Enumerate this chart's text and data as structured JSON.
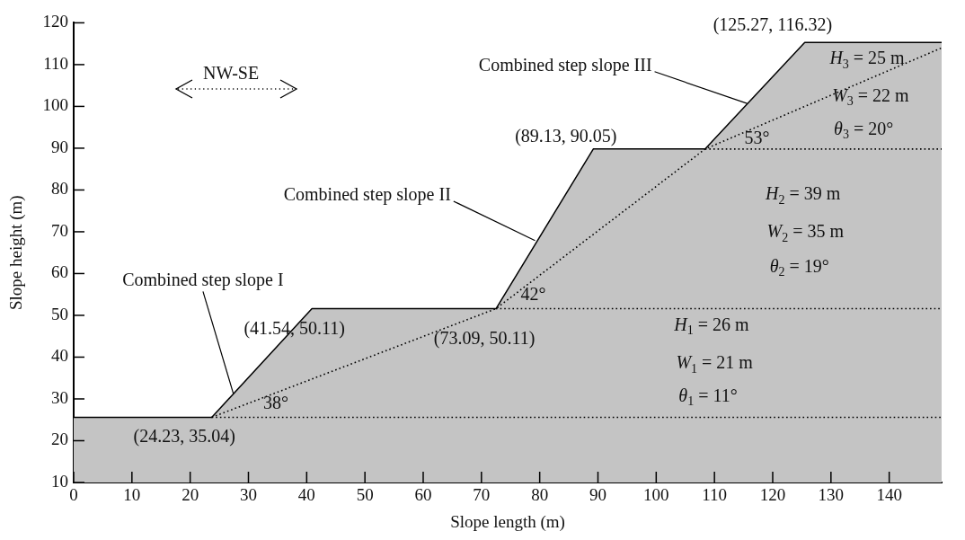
{
  "chart_data": {
    "type": "area",
    "xlabel": "Slope length (m)",
    "ylabel": "Slope height (m)",
    "xlim": [
      0,
      149
    ],
    "ylim": [
      10,
      120
    ],
    "xticks": [
      0,
      10,
      20,
      30,
      40,
      50,
      60,
      70,
      80,
      90,
      100,
      110,
      120,
      130,
      140
    ],
    "yticks": [
      10,
      20,
      30,
      40,
      50,
      60,
      70,
      80,
      90,
      100,
      110,
      120
    ],
    "marker": "none",
    "series": [
      {
        "color": "#c4c4c4",
        "x": [
          0,
          23.7,
          40.9,
          72.5,
          89.2,
          108.4,
          125.5,
          149
        ],
        "values": [
          25.6,
          25.6,
          51.6,
          51.6,
          89.8,
          89.8,
          115.3,
          115.3
        ]
      },
      {
        "type": "line",
        "line_style": "dotted",
        "color": "#000000",
        "x": [
          23.7,
          149
        ],
        "values": [
          25.6,
          25.6
        ]
      },
      {
        "type": "line",
        "line_style": "dotted",
        "color": "#000000",
        "x": [
          72.5,
          149
        ],
        "values": [
          51.6,
          51.6
        ]
      },
      {
        "type": "line",
        "line_style": "dotted",
        "color": "#000000",
        "x": [
          108.4,
          149
        ],
        "values": [
          89.8,
          89.8
        ]
      },
      {
        "type": "line",
        "line_style": "dotted",
        "color": "#000000",
        "x": [
          23.7,
          72.5,
          108.4,
          149
        ],
        "values": [
          25.6,
          51.6,
          89.8,
          114
        ]
      }
    ],
    "annotations": [
      {
        "text": "Combined step slope I",
        "x": 27.4,
        "y": 31.3
      },
      {
        "text": "Combined step slope II",
        "x": 79.2,
        "y": 67.9
      },
      {
        "text": "Combined step slope III",
        "x": 115.6,
        "y": 100.7
      },
      "(24.23, 35.04)",
      "(41.54, 50.11)",
      "(73.09, 50.11)",
      "(89.13, 90.05)",
      "(125.27, 116.32)",
      "38°",
      "42°",
      "53°",
      "H$_{3}$ = 25 m",
      "W$_{3}$ = 22 m",
      "θ$_{3}$ = 20°",
      "H$_{2}$ = 39 m",
      "W$_{2}$ = 35 m",
      "θ$_{2}$ = 19°",
      "H$_{1}$ = 26 m",
      "W$_{1}$ = 21 m",
      "θ$_{1}$ = 11°",
      "NW-SE"
    ]
  }
}
